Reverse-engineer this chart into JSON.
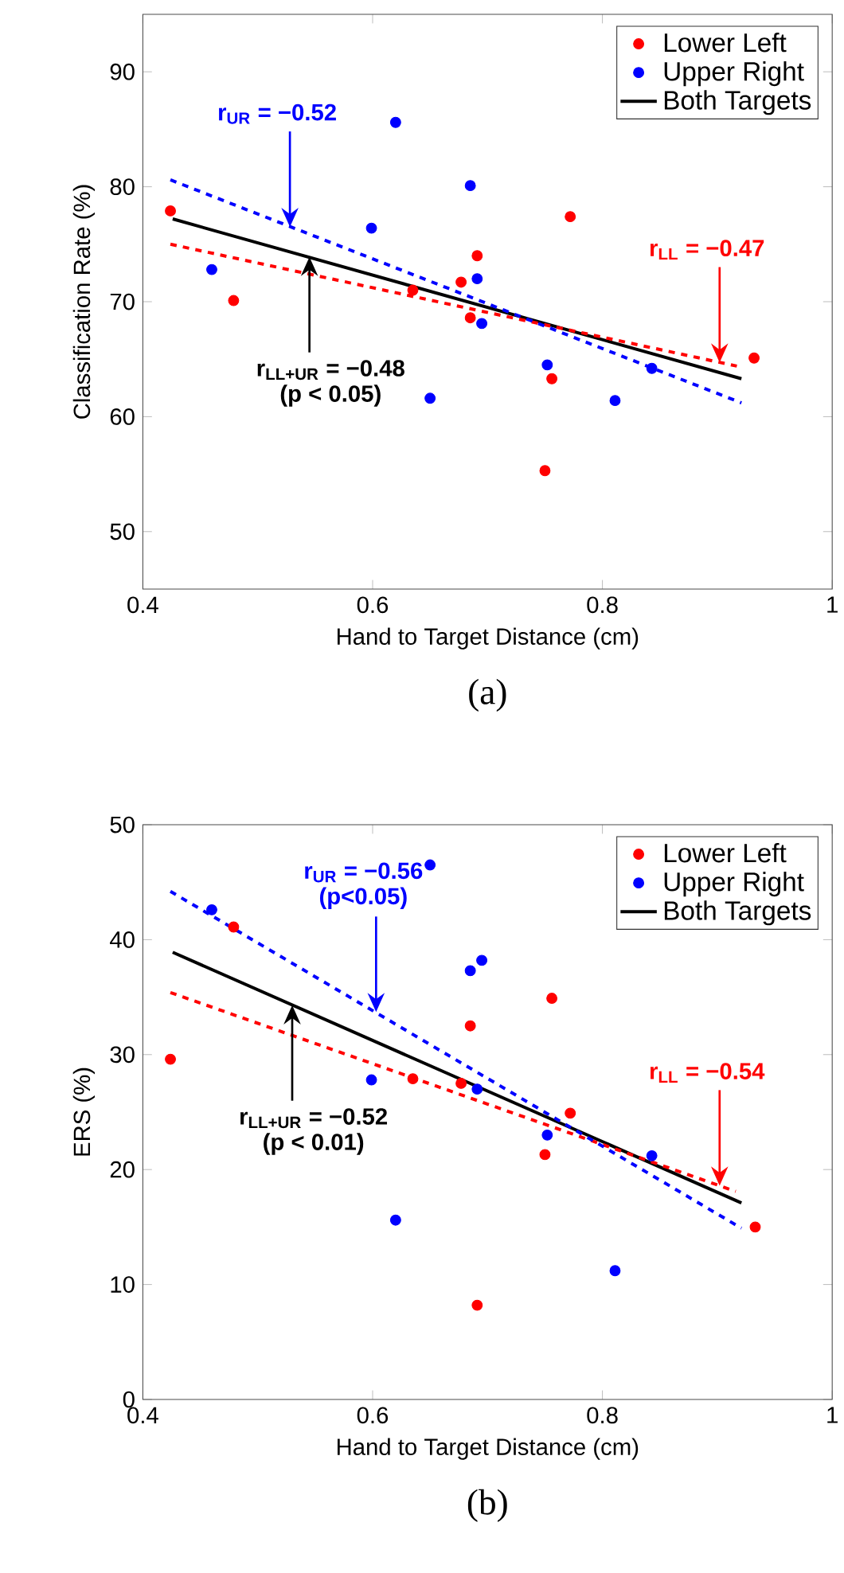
{
  "chart_data": [
    {
      "type": "scatter",
      "title": "(a)",
      "xlabel": "Hand to Target Distance (cm)",
      "ylabel": "Classification Rate (%)",
      "xlim": [
        0.4,
        1
      ],
      "ylim": [
        45,
        95
      ],
      "xticks": [
        0.4,
        0.6,
        0.8,
        1
      ],
      "yticks": [
        50,
        60,
        70,
        80,
        90
      ],
      "legend": "top right",
      "series": [
        {
          "name": "Lower Left",
          "type": "scatter",
          "marker": "circle",
          "color": "#ff0000",
          "x": [
            0.424,
            0.479,
            0.635,
            0.677,
            0.691,
            0.685,
            0.772,
            0.756,
            0.75,
            0.932
          ],
          "values": [
            77.9,
            70.1,
            71.0,
            71.7,
            74.0,
            68.6,
            77.4,
            63.3,
            55.3,
            65.1
          ]
        },
        {
          "name": "Upper Right",
          "type": "scatter",
          "marker": "circle",
          "color": "#0000ff",
          "x": [
            0.46,
            0.62,
            0.599,
            0.685,
            0.691,
            0.695,
            0.65,
            0.752,
            0.811,
            0.843
          ],
          "values": [
            72.8,
            85.6,
            76.4,
            80.1,
            72.0,
            68.1,
            61.6,
            64.5,
            61.4,
            64.2
          ]
        },
        {
          "name": "Both Targets",
          "type": "line",
          "marker": "none",
          "line_style": "solid",
          "color": "#000000",
          "x": [
            0.426,
            0.921
          ],
          "values": [
            77.2,
            63.3
          ]
        },
        {
          "type": "line",
          "marker": "none",
          "line_style": "dashed",
          "color": "#ff0000",
          "x": [
            0.424,
            0.917
          ],
          "values": [
            75.0,
            64.4
          ]
        },
        {
          "type": "line",
          "marker": "none",
          "line_style": "dashed",
          "color": "#0000ff",
          "x": [
            0.424,
            0.921
          ],
          "values": [
            80.6,
            61.2
          ]
        }
      ],
      "annotations": [
        {
          "text": "r$_{UR}$ = −0.52",
          "x": 0.528,
          "y": 76.5
        },
        {
          "text": "r$_{LL+UR}$ = −0.48",
          "x": 0.545,
          "y": 73.9
        },
        "(p < 0.05)",
        {
          "text": "r$_{LL}$ = −0.47",
          "x": 0.902,
          "y": 64.7
        }
      ]
    },
    {
      "type": "scatter",
      "title": "(b)",
      "xlabel": "Hand to Target Distance (cm)",
      "ylabel": "ERS (%)",
      "xlim": [
        0.4,
        1
      ],
      "ylim": [
        0,
        50
      ],
      "xticks": [
        0.4,
        0.6,
        0.8,
        1
      ],
      "yticks": [
        0,
        10,
        20,
        30,
        40,
        50
      ],
      "legend": "top right",
      "series": [
        {
          "name": "Lower Left",
          "type": "scatter",
          "marker": "circle",
          "color": "#ff0000",
          "x": [
            0.424,
            0.479,
            0.635,
            0.677,
            0.685,
            0.691,
            0.756,
            0.75,
            0.772,
            0.933
          ],
          "values": [
            29.6,
            41.1,
            27.9,
            27.5,
            32.5,
            8.2,
            34.9,
            21.3,
            24.9,
            15.0
          ]
        },
        {
          "name": "Upper Right",
          "type": "scatter",
          "marker": "circle",
          "color": "#0000ff",
          "x": [
            0.46,
            0.65,
            0.599,
            0.685,
            0.695,
            0.691,
            0.62,
            0.752,
            0.811,
            0.843
          ],
          "values": [
            42.6,
            46.5,
            27.8,
            37.3,
            38.2,
            27.0,
            15.6,
            23.0,
            11.2,
            21.2
          ]
        },
        {
          "name": "Both Targets",
          "type": "line",
          "marker": "none",
          "line_style": "solid",
          "color": "#000000",
          "x": [
            0.426,
            0.921
          ],
          "values": [
            38.9,
            17.1
          ]
        },
        {
          "type": "line",
          "marker": "none",
          "line_style": "dashed",
          "color": "#ff0000",
          "x": [
            0.424,
            0.916
          ],
          "values": [
            35.4,
            18.1
          ]
        },
        {
          "type": "line",
          "marker": "none",
          "line_style": "dashed",
          "color": "#0000ff",
          "x": [
            0.424,
            0.921
          ],
          "values": [
            44.2,
            14.9
          ]
        }
      ],
      "annotations": [
        "r$_{UR}$ = −0.56",
        {
          "text": "(p<0.05)",
          "x": 0.603,
          "y": 33.7
        },
        {
          "text": "r$_{LL+UR}$ = −0.52",
          "x": 0.53,
          "y": 34.3
        },
        "(p < 0.01)",
        {
          "text": "r$_{LL}$ = −0.54",
          "x": 0.902,
          "y": 18.6
        }
      ]
    }
  ]
}
